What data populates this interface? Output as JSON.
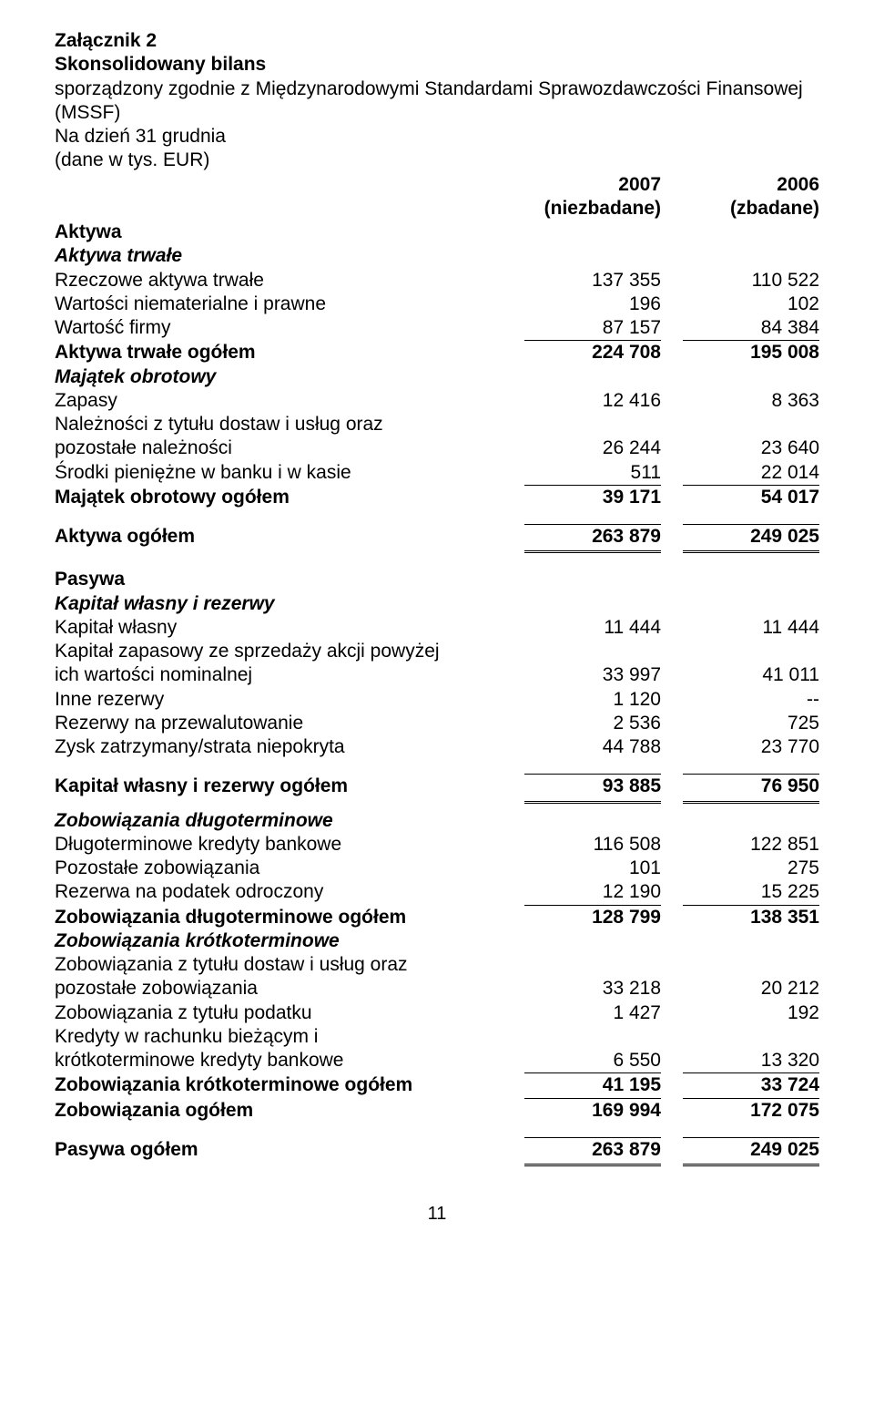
{
  "header": {
    "attachment": "Załącznik 2",
    "title": "Skonsolidowany bilans",
    "subtitle1": "sporządzony zgodnie z Międzynarodowymi Standardami Sprawozdawczości Finansowej (MSSF)",
    "subtitle2": "Na dzień 31 grudnia",
    "subtitle3": "(dane w tys. EUR)"
  },
  "cols": {
    "year1": "2007",
    "year2": "2006",
    "sub1": "(niezbadane)",
    "sub2": "(zbadane)"
  },
  "assets": {
    "heading": "Aktywa",
    "fixed_heading": "Aktywa trwałe",
    "ppe": {
      "label": "Rzeczowe aktywa trwałe",
      "v1": "137 355",
      "v2": "110 522"
    },
    "intangibles": {
      "label": "Wartości niematerialne i prawne",
      "v1": "196",
      "v2": "102"
    },
    "goodwill": {
      "label": "Wartość firmy",
      "v1": "87 157",
      "v2": "84 384"
    },
    "fixed_total": {
      "label": "Aktywa trwałe ogółem",
      "v1": "224 708",
      "v2": "195 008"
    },
    "current_heading": "Majątek obrotowy",
    "inventory": {
      "label": "Zapasy",
      "v1": "12 416",
      "v2": "8 363"
    },
    "receivables": {
      "label1": "Należności z tytułu dostaw i usług oraz",
      "label2": "pozostałe należności",
      "v1": "26 244",
      "v2": "23 640"
    },
    "cash": {
      "label": "Środki pieniężne w banku i w kasie",
      "v1": "511",
      "v2": "22 014"
    },
    "current_total": {
      "label": "Majątek obrotowy ogółem",
      "v1": "39 171",
      "v2": "54 017"
    },
    "total": {
      "label": "Aktywa ogółem",
      "v1": "263 879",
      "v2": "249 025"
    }
  },
  "liab": {
    "heading": "Pasywa",
    "equity_heading": "Kapitał własny i rezerwy",
    "share_capital": {
      "label": "Kapitał własny",
      "v1": "11 444",
      "v2": "11 444"
    },
    "share_premium": {
      "label1": "Kapitał zapasowy ze sprzedaży akcji powyżej",
      "label2": "ich wartości nominalnej",
      "v1": "33 997",
      "v2": "41 011"
    },
    "other_reserves": {
      "label": "Inne rezerwy",
      "v1": "1 120",
      "v2": "--"
    },
    "fx_reserve": {
      "label": "Rezerwy na przewalutowanie",
      "v1": "2 536",
      "v2": "725"
    },
    "retained": {
      "label": "Zysk zatrzymany/strata niepokryta",
      "v1": "44 788",
      "v2": "23 770"
    },
    "equity_total": {
      "label": "Kapitał własny i rezerwy ogółem",
      "v1": "93 885",
      "v2": "76 950"
    },
    "lt_heading": "Zobowiązania długoterminowe",
    "lt_bank": {
      "label": "Długoterminowe kredyty bankowe",
      "v1": "116 508",
      "v2": "122 851"
    },
    "lt_other": {
      "label": "Pozostałe zobowiązania",
      "v1": "101",
      "v2": "275"
    },
    "deferred_tax": {
      "label": "Rezerwa na podatek odroczony",
      "v1": "12 190",
      "v2": "15 225"
    },
    "lt_total": {
      "label": "Zobowiązania długoterminowe ogółem",
      "v1": "128 799",
      "v2": "138 351"
    },
    "st_heading": "Zobowiązania krótkoterminowe",
    "trade_payables": {
      "label1": "Zobowiązania z tytułu dostaw i usług oraz",
      "label2": "pozostałe zobowiązania",
      "v1": "33 218",
      "v2": "20 212"
    },
    "tax_payable": {
      "label": "Zobowiązania z tytułu podatku",
      "v1": "1 427",
      "v2": "192"
    },
    "st_bank": {
      "label1": "Kredyty w rachunku bieżącym i",
      "label2": "krótkoterminowe kredyty bankowe",
      "v1": "6 550",
      "v2": "13 320"
    },
    "st_total": {
      "label": "Zobowiązania krótkoterminowe ogółem",
      "v1": "41 195",
      "v2": "33 724"
    },
    "liab_total": {
      "label": "Zobowiązania ogółem",
      "v1": "169 994",
      "v2": "172 075"
    },
    "passives_total": {
      "label": "Pasywa ogółem",
      "v1": "263 879",
      "v2": "249 025"
    }
  },
  "page": "11"
}
